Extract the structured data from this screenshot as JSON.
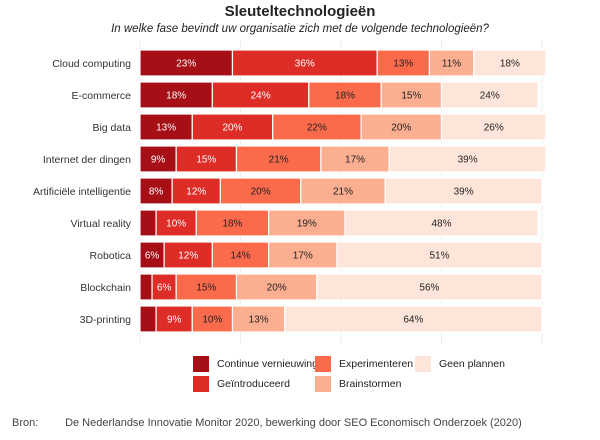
{
  "title": "Sleuteltechnologieën",
  "subtitle": "In welke fase bevindt uw organisatie zich met de volgende technologieën?",
  "source": {
    "label": "Bron:",
    "text": "De Nederlandse Innovatie Monitor 2020, bewerking door SEO Economisch Onderzoek (2020)"
  },
  "chart_data": {
    "type": "bar",
    "orientation": "horizontal",
    "stacked": true,
    "percent_labels": true,
    "title": "Sleuteltechnologieën",
    "subtitle": "In welke fase bevindt uw organisatie zich met de volgende technologieën?",
    "xlim": [
      0,
      100
    ],
    "categories": [
      "Cloud computing",
      "E-commerce",
      "Big data",
      "Internet der dingen",
      "Artificiële intelligentie",
      "Virtual reality",
      "Robotica",
      "Blockchain",
      "3D-printing"
    ],
    "series": [
      {
        "name": "Continue vernieuwing",
        "color": "#a50f15",
        "label_color": "#ffffff",
        "values": [
          23,
          18,
          13,
          9,
          8,
          4,
          6,
          3,
          4
        ]
      },
      {
        "name": "Geïntroduceerd",
        "color": "#de2d26",
        "label_color": "#ffffff",
        "values": [
          36,
          24,
          20,
          15,
          12,
          10,
          12,
          6,
          9
        ]
      },
      {
        "name": "Experimenteren",
        "color": "#fb6a4a",
        "label_color": "#222222",
        "values": [
          13,
          18,
          22,
          21,
          20,
          18,
          14,
          15,
          10
        ]
      },
      {
        "name": "Brainstormen",
        "color": "#fcae91",
        "label_color": "#222222",
        "values": [
          11,
          15,
          20,
          17,
          21,
          19,
          17,
          20,
          13
        ]
      },
      {
        "name": "Geen plannen",
        "color": "#fee5d9",
        "label_color": "#222222",
        "values": [
          18,
          24,
          26,
          39,
          39,
          48,
          51,
          56,
          64
        ]
      }
    ],
    "legend": {
      "position": "bottom"
    },
    "grid": true
  }
}
